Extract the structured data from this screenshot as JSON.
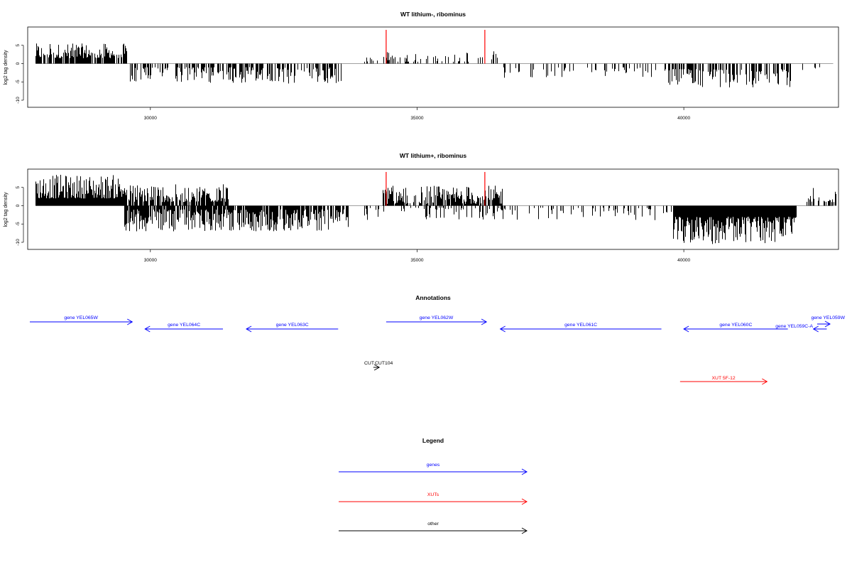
{
  "chart_data": [
    {
      "type": "bar",
      "title": "WT lithium-, ribominus",
      "xlabel": "",
      "ylabel": "log2 tag density",
      "xlim": [
        27700,
        42900
      ],
      "ylim": [
        -11,
        9
      ],
      "xticks": [
        "30000",
        "35000",
        "40000"
      ],
      "yticks": [
        "5",
        "0",
        "-5",
        "-10"
      ],
      "markers_x": [
        34420,
        36270
      ],
      "marker_color": "#ff0000",
      "segments": [
        {
          "start": 27850,
          "end": 29550,
          "sign": 1,
          "min": 1.5,
          "max": 5.5,
          "density": 0.8
        },
        {
          "start": 29600,
          "end": 33600,
          "sign": -1,
          "min": 1.0,
          "max": 5.5,
          "density": 0.55
        },
        {
          "start": 34000,
          "end": 36550,
          "sign": 1,
          "min": 0.5,
          "max": 3.5,
          "density": 0.25
        },
        {
          "start": 36600,
          "end": 39500,
          "sign": -1,
          "min": 1.0,
          "max": 4.0,
          "density": 0.22
        },
        {
          "start": 39600,
          "end": 42000,
          "sign": -1,
          "min": 1.5,
          "max": 6.5,
          "density": 0.6
        },
        {
          "start": 42200,
          "end": 42600,
          "sign": -1,
          "min": 1.0,
          "max": 2.5,
          "density": 0.15
        }
      ]
    },
    {
      "type": "bar",
      "title": "WT lithium+, ribominus",
      "xlabel": "",
      "ylabel": "log2 tag density",
      "xlim": [
        27700,
        42900
      ],
      "ylim": [
        -11,
        9
      ],
      "xticks": [
        "30000",
        "35000",
        "40000"
      ],
      "yticks": [
        "5",
        "0",
        "-5",
        "-10"
      ],
      "markers_x": [
        34420,
        36270
      ],
      "marker_color": "#ff0000",
      "segments": [
        {
          "start": 27850,
          "end": 29550,
          "sign": 1,
          "min": 2.0,
          "max": 8.5,
          "density": 1.0
        },
        {
          "start": 29550,
          "end": 31450,
          "sign": 1,
          "min": 1.0,
          "max": 6.0,
          "density": 0.8
        },
        {
          "start": 29500,
          "end": 33700,
          "sign": -1,
          "min": 1.0,
          "max": 7.0,
          "density": 0.85
        },
        {
          "start": 34350,
          "end": 36600,
          "sign": 1,
          "min": 0.5,
          "max": 5.5,
          "density": 0.8
        },
        {
          "start": 34000,
          "end": 39800,
          "sign": -1,
          "min": 0.5,
          "max": 4.0,
          "density": 0.25
        },
        {
          "start": 39800,
          "end": 42100,
          "sign": -1,
          "min": 3.0,
          "max": 10.5,
          "density": 1.0
        },
        {
          "start": 42300,
          "end": 42850,
          "sign": 1,
          "min": 1.0,
          "max": 5.0,
          "density": 0.5
        }
      ]
    }
  ],
  "annotations": {
    "title": "Annotations",
    "genes": [
      {
        "label": "gene YEL065W",
        "start": 27740,
        "end": 29660,
        "dir": "+"
      },
      {
        "label": "gene YEL064C",
        "start": 29900,
        "end": 31360,
        "dir": "-"
      },
      {
        "label": "gene YEL063C",
        "start": 31800,
        "end": 33520,
        "dir": "-"
      },
      {
        "label": "gene YEL062W",
        "start": 34420,
        "end": 36300,
        "dir": "+"
      },
      {
        "label": "gene YEL061C",
        "start": 36560,
        "end": 39580,
        "dir": "-"
      },
      {
        "label": "gene YEL060C",
        "start": 40000,
        "end": 41950,
        "dir": "-"
      },
      {
        "label": "gene YEL059C-A",
        "start": 42430,
        "end": 42680,
        "dir": "-"
      },
      {
        "label": "gene YEL059W",
        "start": 42500,
        "end": 42740,
        "dir": "+"
      }
    ],
    "xuts": [
      {
        "label": "XUT 5F-12",
        "start": 39930,
        "end": 41560,
        "dir": "+"
      }
    ],
    "others": [
      {
        "label": "CUT",
        "start": 34180,
        "end": 34290,
        "dir": "+"
      },
      {
        "label": "CUT104",
        "start": 34190,
        "end": 34280,
        "dir": "+"
      }
    ]
  },
  "legend": {
    "title": "Legend",
    "items": [
      {
        "label": "genes",
        "color": "#0000ff"
      },
      {
        "label": "XUTs",
        "color": "#ff0000"
      },
      {
        "label": "other",
        "color": "#000000"
      }
    ]
  },
  "colors": {
    "genes": "#0000ff",
    "xuts": "#ff0000",
    "other": "#000000",
    "baseline": "#808080"
  }
}
